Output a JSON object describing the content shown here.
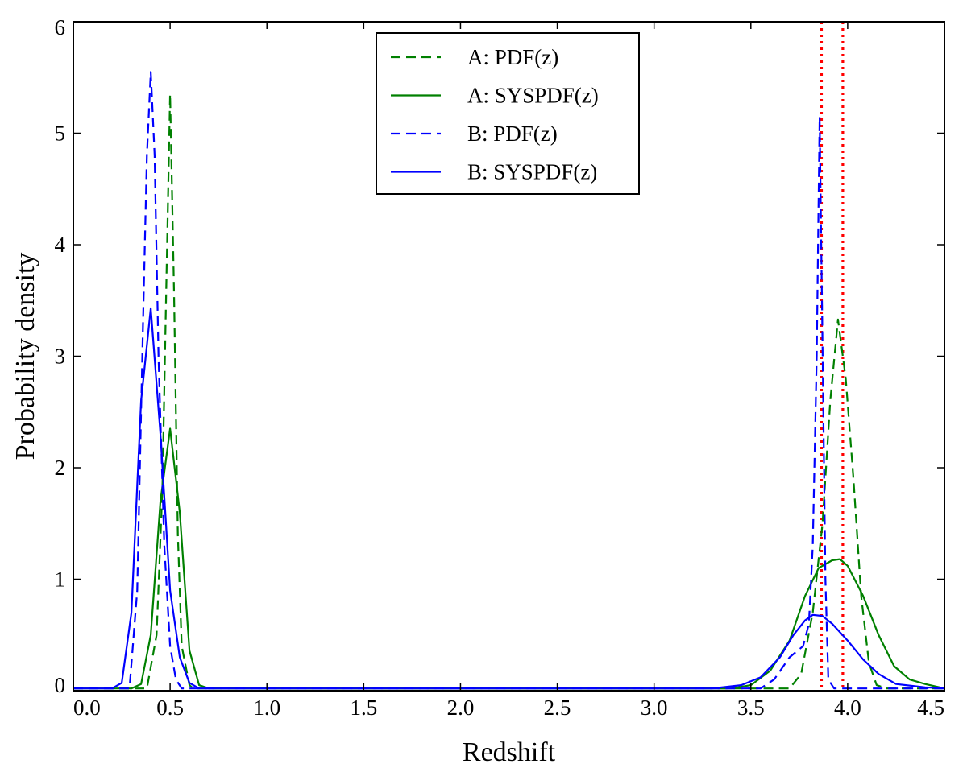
{
  "chart_data": {
    "type": "line",
    "title": "",
    "xlabel": "Redshift",
    "ylabel": "Probability density",
    "xlim": [
      0.0,
      4.5
    ],
    "ylim": [
      0,
      6
    ],
    "xticks": [
      "0.0",
      "0.5",
      "1.0",
      "1.5",
      "2.0",
      "2.5",
      "3.0",
      "3.5",
      "4.0",
      "4.5"
    ],
    "yticks": [
      "0",
      "1",
      "2",
      "3",
      "4",
      "5",
      "6"
    ],
    "legend_position": "top-center",
    "series": [
      {
        "name": "A: PDF(z)",
        "color": "#008000",
        "style": "dashed",
        "points": [
          [
            0.0,
            0.02
          ],
          [
            0.38,
            0.02
          ],
          [
            0.43,
            0.5
          ],
          [
            0.46,
            1.8
          ],
          [
            0.48,
            3.6
          ],
          [
            0.5,
            5.35
          ],
          [
            0.52,
            3.6
          ],
          [
            0.54,
            1.4
          ],
          [
            0.56,
            0.4
          ],
          [
            0.6,
            0.05
          ],
          [
            0.62,
            0.02
          ],
          [
            3.7,
            0.02
          ],
          [
            3.76,
            0.15
          ],
          [
            3.82,
            0.7
          ],
          [
            3.87,
            1.5
          ],
          [
            3.91,
            2.6
          ],
          [
            3.95,
            3.33
          ],
          [
            3.99,
            2.8
          ],
          [
            4.03,
            1.9
          ],
          [
            4.07,
            0.85
          ],
          [
            4.11,
            0.25
          ],
          [
            4.15,
            0.05
          ],
          [
            4.2,
            0.02
          ],
          [
            4.5,
            0.02
          ]
        ]
      },
      {
        "name": "A: SYSPDF(z)",
        "color": "#008000",
        "style": "solid",
        "points": [
          [
            0.0,
            0.02
          ],
          [
            0.3,
            0.02
          ],
          [
            0.35,
            0.06
          ],
          [
            0.4,
            0.5
          ],
          [
            0.45,
            1.7
          ],
          [
            0.5,
            2.35
          ],
          [
            0.55,
            1.6
          ],
          [
            0.6,
            0.36
          ],
          [
            0.65,
            0.05
          ],
          [
            0.7,
            0.02
          ],
          [
            3.4,
            0.02
          ],
          [
            3.5,
            0.05
          ],
          [
            3.6,
            0.18
          ],
          [
            3.7,
            0.45
          ],
          [
            3.78,
            0.85
          ],
          [
            3.85,
            1.1
          ],
          [
            3.92,
            1.17
          ],
          [
            3.96,
            1.18
          ],
          [
            4.0,
            1.12
          ],
          [
            4.08,
            0.85
          ],
          [
            4.16,
            0.5
          ],
          [
            4.24,
            0.22
          ],
          [
            4.32,
            0.1
          ],
          [
            4.4,
            0.06
          ],
          [
            4.5,
            0.02
          ]
        ]
      },
      {
        "name": "B: PDF(z)",
        "color": "#0000FF",
        "style": "dashed",
        "points": [
          [
            0.0,
            0.02
          ],
          [
            0.29,
            0.02
          ],
          [
            0.33,
            0.9
          ],
          [
            0.36,
            3.3
          ],
          [
            0.38,
            4.8
          ],
          [
            0.4,
            5.55
          ],
          [
            0.42,
            4.8
          ],
          [
            0.44,
            3.0
          ],
          [
            0.47,
            1.3
          ],
          [
            0.5,
            0.4
          ],
          [
            0.53,
            0.1
          ],
          [
            0.56,
            0.02
          ],
          [
            3.55,
            0.02
          ],
          [
            3.62,
            0.1
          ],
          [
            3.7,
            0.3
          ],
          [
            3.77,
            0.4
          ],
          [
            3.8,
            0.6
          ],
          [
            3.82,
            1.3
          ],
          [
            3.84,
            3.0
          ],
          [
            3.855,
            5.15
          ],
          [
            3.87,
            3.1
          ],
          [
            3.885,
            1.0
          ],
          [
            3.9,
            0.1
          ],
          [
            3.93,
            0.02
          ],
          [
            4.5,
            0.02
          ]
        ]
      },
      {
        "name": "B: SYSPDF(z)",
        "color": "#0000FF",
        "style": "solid",
        "points": [
          [
            0.0,
            0.02
          ],
          [
            0.2,
            0.02
          ],
          [
            0.25,
            0.07
          ],
          [
            0.3,
            0.7
          ],
          [
            0.35,
            2.6
          ],
          [
            0.4,
            3.43
          ],
          [
            0.45,
            2.3
          ],
          [
            0.5,
            0.9
          ],
          [
            0.55,
            0.3
          ],
          [
            0.6,
            0.07
          ],
          [
            0.65,
            0.02
          ],
          [
            3.3,
            0.02
          ],
          [
            3.45,
            0.05
          ],
          [
            3.55,
            0.12
          ],
          [
            3.65,
            0.3
          ],
          [
            3.72,
            0.5
          ],
          [
            3.78,
            0.63
          ],
          [
            3.82,
            0.68
          ],
          [
            3.87,
            0.67
          ],
          [
            3.92,
            0.6
          ],
          [
            4.0,
            0.45
          ],
          [
            4.08,
            0.28
          ],
          [
            4.16,
            0.15
          ],
          [
            4.25,
            0.06
          ],
          [
            4.4,
            0.03
          ],
          [
            4.5,
            0.02
          ]
        ]
      }
    ],
    "vlines": [
      {
        "x": 3.865,
        "color": "#FF0000",
        "style": "dotted"
      },
      {
        "x": 3.975,
        "color": "#FF0000",
        "style": "dotted"
      }
    ]
  }
}
